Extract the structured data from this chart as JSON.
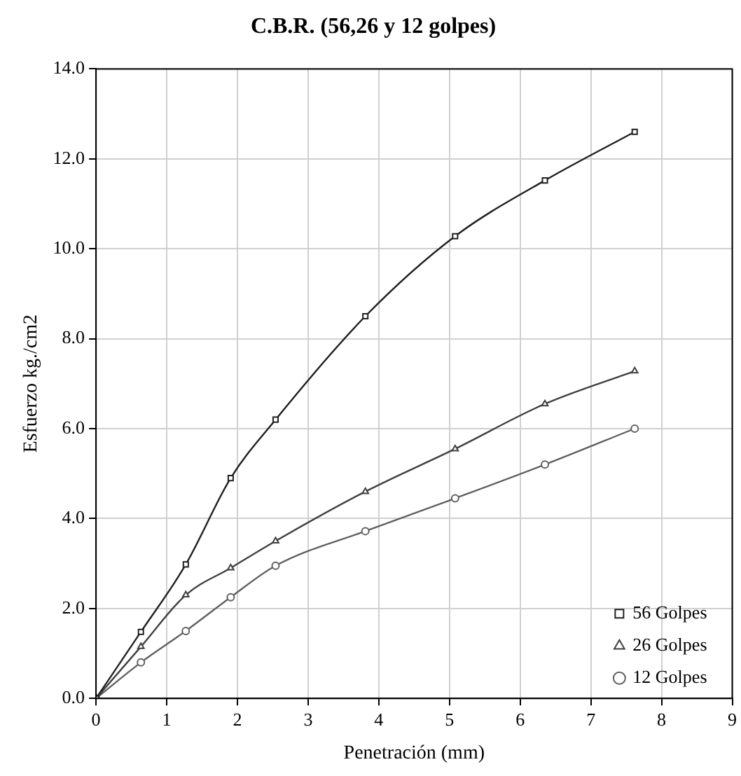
{
  "chart_data": {
    "type": "line",
    "title": "C.B.R. (56,26 y 12 golpes)",
    "xlabel": "Penetración (mm)",
    "ylabel": "Esfuerzo kg./cm2",
    "x": [
      0,
      0.635,
      1.27,
      1.905,
      2.54,
      3.81,
      5.08,
      6.35,
      7.62
    ],
    "series": [
      {
        "name": "56 Golpes",
        "color": "#202020",
        "marker": "square",
        "values": [
          0,
          1.48,
          2.98,
          4.9,
          6.2,
          8.5,
          10.28,
          11.52,
          12.6
        ]
      },
      {
        "name": "26 Golpes",
        "color": "#404040",
        "marker": "triangle",
        "values": [
          0,
          1.15,
          2.3,
          2.9,
          3.5,
          4.6,
          5.55,
          6.55,
          7.28
        ]
      },
      {
        "name": "12 Golpes",
        "color": "#606060",
        "marker": "circle",
        "values": [
          0,
          0.8,
          1.5,
          2.25,
          2.95,
          3.72,
          4.45,
          5.2,
          6.0
        ]
      }
    ],
    "xlim": [
      0,
      9
    ],
    "xticks": [
      0,
      1,
      2,
      3,
      4,
      5,
      6,
      7,
      8,
      9
    ],
    "ylim": [
      0,
      14
    ],
    "yticks": [
      {
        "value": 0,
        "label": "0.0"
      },
      {
        "value": 2,
        "label": "2.0"
      },
      {
        "value": 4,
        "label": "4.0"
      },
      {
        "value": 6,
        "label": "6.0"
      },
      {
        "value": 8,
        "label": "8.0"
      },
      {
        "value": 10,
        "label": "10.0"
      },
      {
        "value": 12,
        "label": "12.0"
      },
      {
        "value": 14,
        "label": "14.0"
      }
    ],
    "grid": true,
    "legend": "bottom right"
  }
}
